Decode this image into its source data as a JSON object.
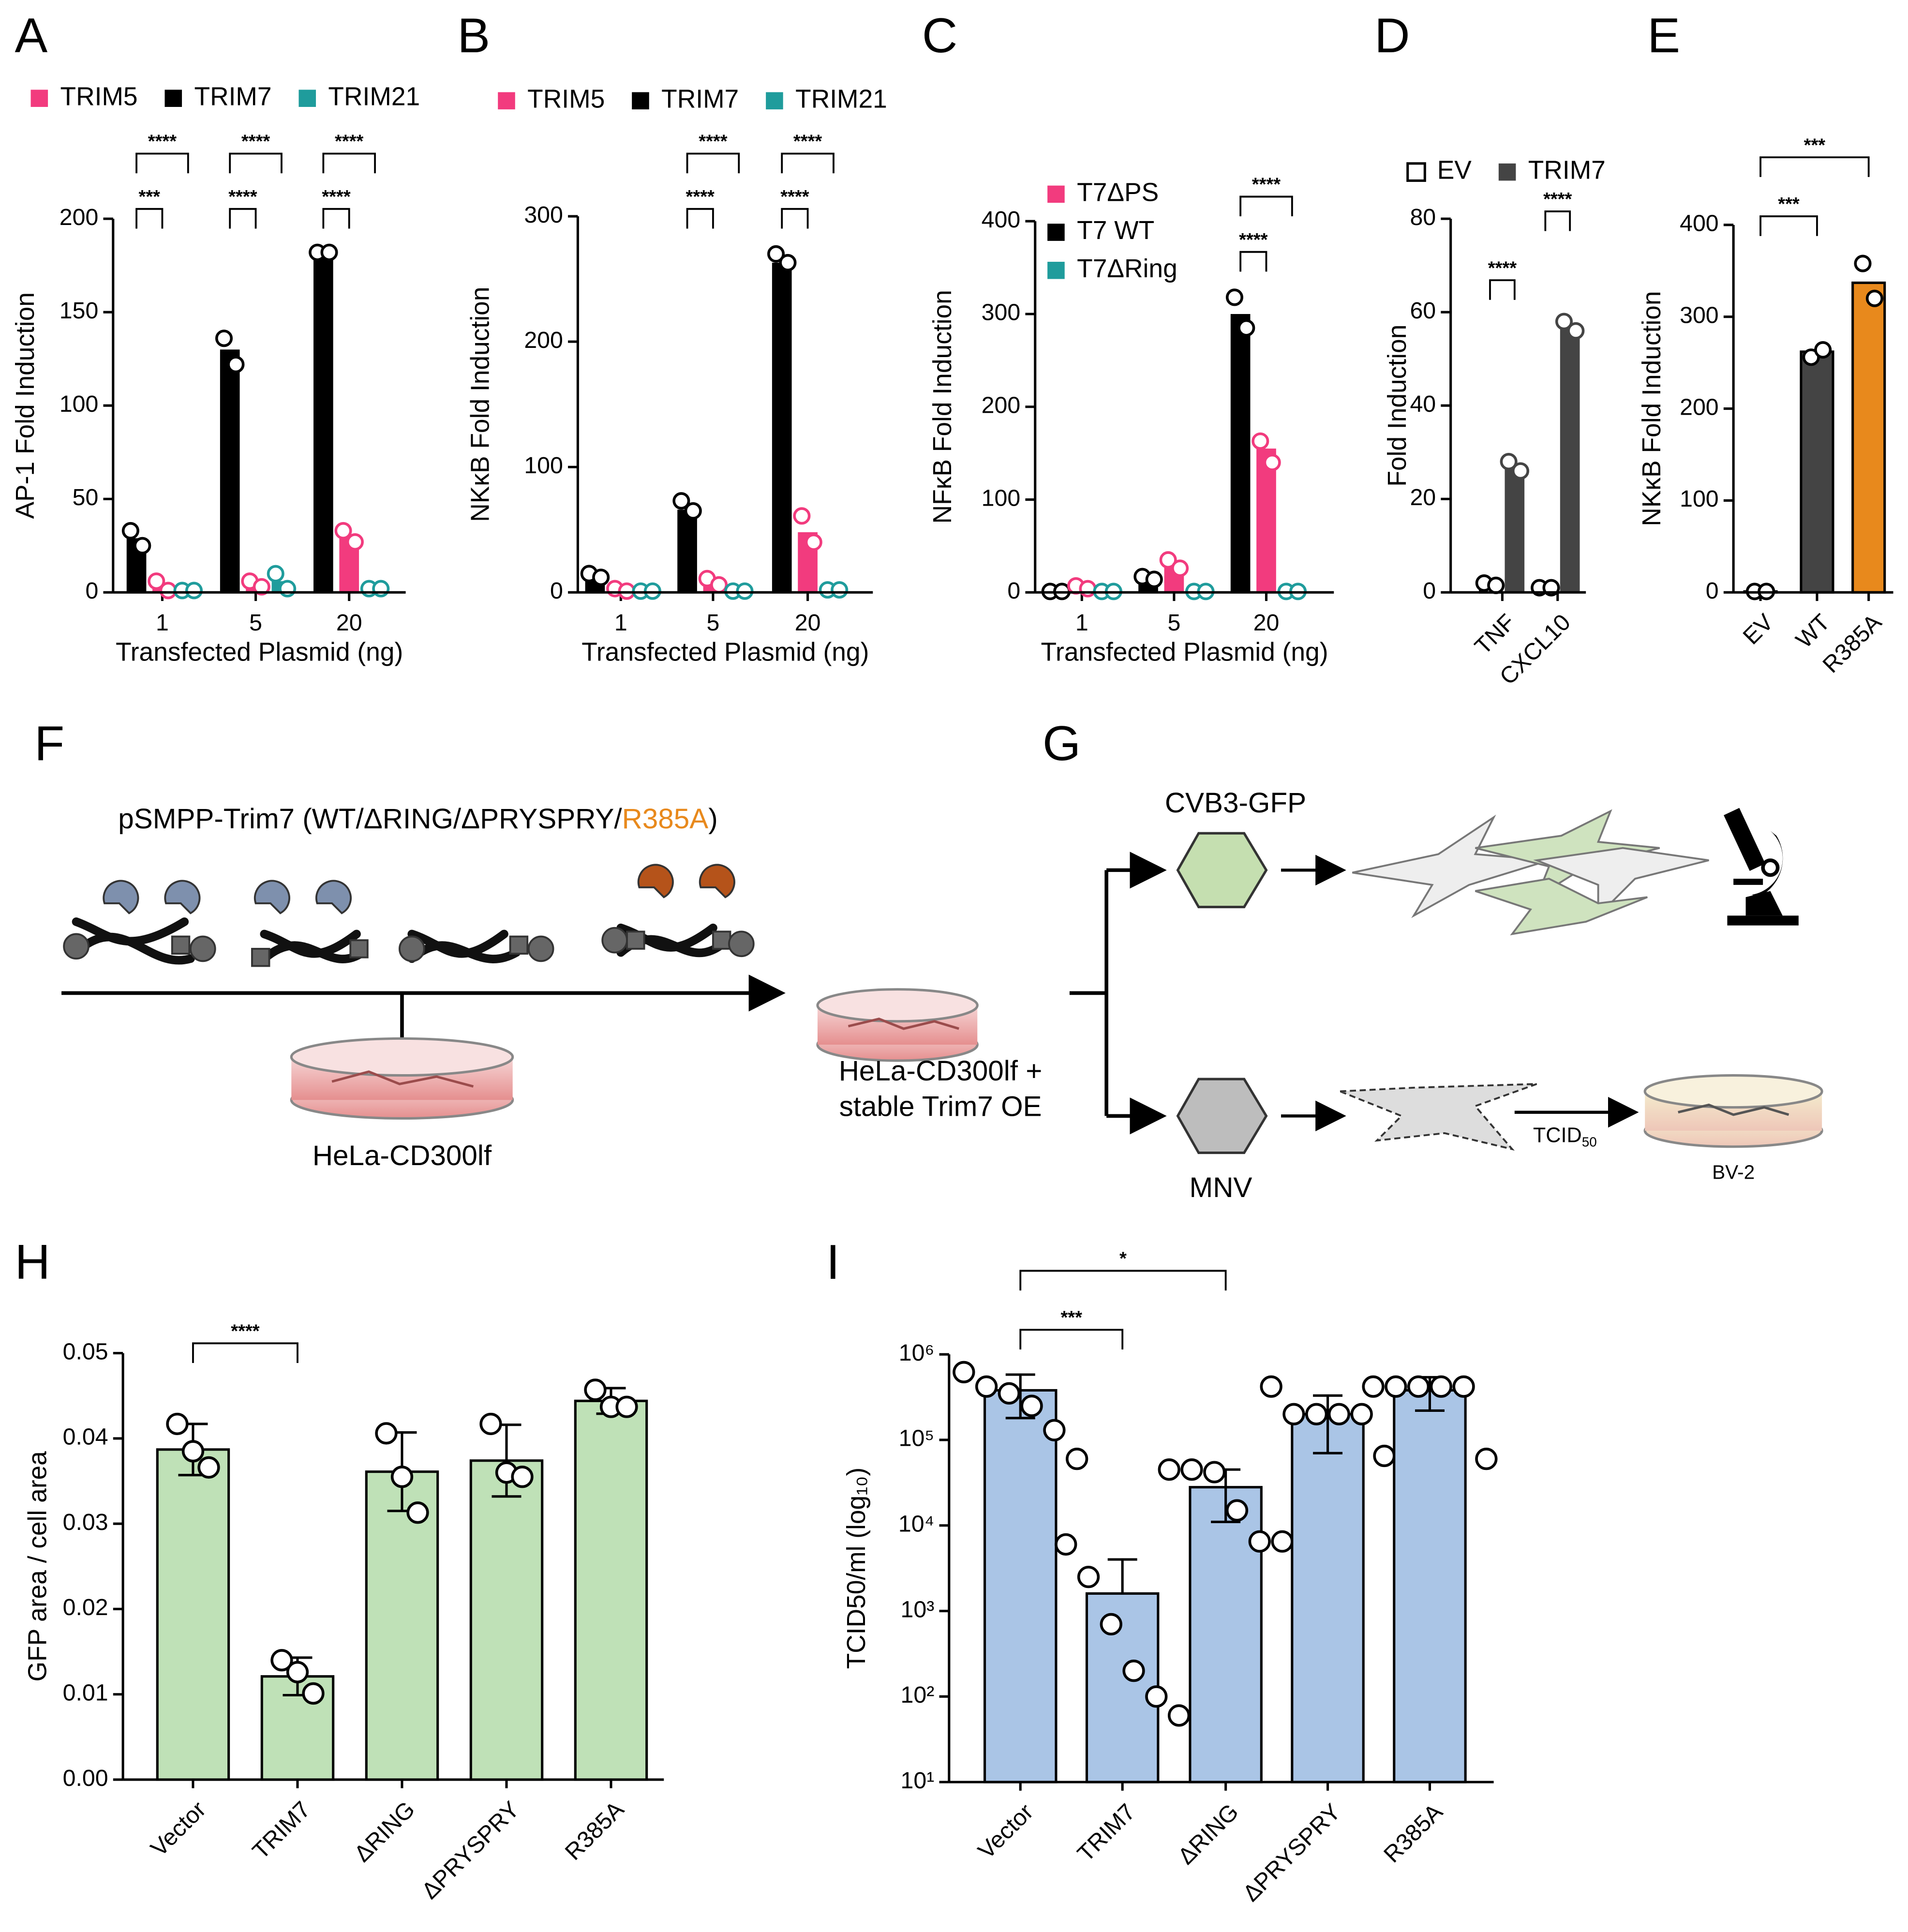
{
  "chart_data": [
    {
      "type": "bar",
      "panel": "A",
      "ylabel": "AP-1 Fold Induction",
      "xlabel": "Transfected Plasmid (ng)",
      "categories": [
        "1",
        "5",
        "20"
      ],
      "ylim": [
        0,
        200
      ],
      "yticks": [
        0,
        50,
        100,
        150,
        200
      ],
      "bar_order": [
        1,
        0,
        2
      ],
      "series": [
        {
          "name": "TRIM5",
          "color": "#f23b7e",
          "values": [
            3,
            4,
            29
          ],
          "points": [
            [
              6,
              1
            ],
            [
              6,
              3
            ],
            [
              33,
              27
            ]
          ]
        },
        {
          "name": "TRIM7",
          "color": "#000000",
          "values": [
            29,
            130,
            182
          ],
          "points": [
            [
              33,
              25
            ],
            [
              136,
              122
            ],
            [
              182,
              182
            ]
          ]
        },
        {
          "name": "TRIM21",
          "color": "#1f9c9c",
          "values": [
            1,
            6,
            2
          ],
          "points": [
            [
              1,
              1
            ],
            [
              10,
              2
            ],
            [
              2,
              2
            ]
          ]
        }
      ],
      "comparisons": [
        {
          "category": 0,
          "series": [
            1,
            0
          ],
          "label": "***"
        },
        {
          "category": 0,
          "series": [
            1,
            2
          ],
          "label": "****"
        },
        {
          "category": 1,
          "series": [
            1,
            0
          ],
          "label": "****"
        },
        {
          "category": 1,
          "series": [
            1,
            2
          ],
          "label": "****"
        },
        {
          "category": 2,
          "series": [
            1,
            0
          ],
          "label": "****"
        },
        {
          "category": 2,
          "series": [
            1,
            2
          ],
          "label": "****"
        }
      ]
    },
    {
      "type": "bar",
      "panel": "B",
      "ylabel": "NKκB Fold Induction",
      "xlabel": "Transfected Plasmid (ng)",
      "categories": [
        "1",
        "5",
        "20"
      ],
      "ylim": [
        0,
        300
      ],
      "yticks": [
        0,
        100,
        200,
        300
      ],
      "bar_order": [
        1,
        0,
        2
      ],
      "series": [
        {
          "name": "TRIM5",
          "color": "#f23b7e",
          "values": [
            2,
            8,
            48
          ],
          "points": [
            [
              3,
              1
            ],
            [
              11,
              6
            ],
            [
              61,
              40
            ]
          ]
        },
        {
          "name": "TRIM7",
          "color": "#000000",
          "values": [
            13,
            66,
            263
          ],
          "points": [
            [
              15,
              12
            ],
            [
              73,
              65
            ],
            [
              270,
              263
            ]
          ]
        },
        {
          "name": "TRIM21",
          "color": "#1f9c9c",
          "values": [
            1,
            1,
            2
          ],
          "points": [
            [
              1,
              1
            ],
            [
              1,
              1
            ],
            [
              2,
              2
            ]
          ]
        }
      ],
      "comparisons": [
        {
          "category": 1,
          "series": [
            1,
            0
          ],
          "label": "****"
        },
        {
          "category": 1,
          "series": [
            1,
            2
          ],
          "label": "****"
        },
        {
          "category": 2,
          "series": [
            1,
            0
          ],
          "label": "****"
        },
        {
          "category": 2,
          "series": [
            1,
            2
          ],
          "label": "****"
        }
      ]
    },
    {
      "type": "bar",
      "panel": "C",
      "ylabel": "NFκB Fold Induction",
      "xlabel": "Transfected Plasmid (ng)",
      "categories": [
        "1",
        "5",
        "20"
      ],
      "ylim": [
        0,
        400
      ],
      "yticks": [
        0,
        100,
        200,
        300,
        400
      ],
      "bar_order": [
        1,
        0,
        2
      ],
      "series": [
        {
          "name": "T7ΔPS",
          "color": "#f23b7e",
          "values": [
            5,
            30,
            155
          ],
          "points": [
            [
              7,
              4
            ],
            [
              35,
              26
            ],
            [
              163,
              140
            ]
          ]
        },
        {
          "name": "T7 WT",
          "color": "#000000",
          "values": [
            1,
            15,
            300
          ],
          "points": [
            [
              1,
              1
            ],
            [
              17,
              14
            ],
            [
              318,
              285
            ]
          ]
        },
        {
          "name": "T7ΔRing",
          "color": "#1f9c9c",
          "values": [
            1,
            1,
            1
          ],
          "points": [
            [
              1,
              1
            ],
            [
              1,
              1
            ],
            [
              1,
              1
            ]
          ]
        }
      ],
      "comparisons": [
        {
          "category": 2,
          "series": [
            1,
            0
          ],
          "label": "****"
        },
        {
          "category": 2,
          "series": [
            1,
            2
          ],
          "label": "****"
        }
      ]
    },
    {
      "type": "bar",
      "panel": "D",
      "ylabel": "Fold Induction",
      "categories": [
        "TNF",
        "CXCL10"
      ],
      "ylim": [
        0,
        80
      ],
      "yticks": [
        0,
        20,
        40,
        60,
        80
      ],
      "bar_order": [
        0,
        1
      ],
      "series": [
        {
          "name": "EV",
          "color": "#ffffff",
          "values": [
            2,
            1
          ],
          "points": [
            [
              2,
              1.5
            ],
            [
              1,
              1
            ]
          ]
        },
        {
          "name": "TRIM7",
          "color": "#444444",
          "values": [
            27,
            57
          ],
          "points": [
            [
              28,
              26
            ],
            [
              58,
              56
            ]
          ]
        }
      ],
      "comparisons": [
        {
          "category": 0,
          "series": [
            0,
            1
          ],
          "label": "****"
        },
        {
          "category": 1,
          "series": [
            0,
            1
          ],
          "label": "****"
        }
      ]
    },
    {
      "type": "bar",
      "panel": "E",
      "ylabel": "NKκB Fold Induction",
      "categories": [
        "EV",
        "WT",
        "R385A"
      ],
      "ylim": [
        0,
        400
      ],
      "yticks": [
        0,
        100,
        200,
        300,
        400
      ],
      "values": [
        1,
        262,
        337
      ],
      "colors": [
        "#ffffff",
        "#444444",
        "#e8891c"
      ],
      "points": [
        [
          1,
          1
        ],
        [
          256,
          264
        ],
        [
          358,
          320
        ]
      ],
      "comparisons": [
        {
          "categories": [
            0,
            1
          ],
          "label": "***"
        },
        {
          "categories": [
            0,
            2
          ],
          "label": "***"
        }
      ]
    },
    {
      "type": "bar",
      "panel": "H",
      "ylabel": "GFP area / cell area",
      "categories": [
        "Vector",
        "TRIM7",
        "ΔRING",
        "ΔPRYSPRY",
        "R385A"
      ],
      "ylim": [
        0,
        0.05
      ],
      "yticks": [
        {
          "value": 0,
          "label": "0.00"
        },
        0.01,
        0.02,
        0.03,
        0.04,
        0.05
      ],
      "color": "#bfe1b7",
      "values": [
        0.0387,
        0.0121,
        0.0361,
        0.0374,
        0.0444
      ],
      "errors": [
        0.003,
        0.0022,
        0.0046,
        0.0042,
        0.0015
      ],
      "points": [
        [
          0.0417,
          0.0385,
          0.0366
        ],
        [
          0.014,
          0.0126,
          0.0101
        ],
        [
          0.0406,
          0.0355,
          0.0313
        ],
        [
          0.0417,
          0.036,
          0.0355
        ],
        [
          0.0457,
          0.0437,
          0.0437
        ]
      ],
      "comparisons": [
        {
          "categories": [
            0,
            1
          ],
          "label": "****"
        }
      ]
    },
    {
      "type": "bar",
      "panel": "I",
      "ylabel": "TCID50/ml (log₁₀)",
      "log_y": true,
      "categories": [
        "Vector",
        "TRIM7",
        "ΔRING",
        "ΔPRYSPRY",
        "R385A"
      ],
      "ylim": [
        10,
        1000000
      ],
      "yticks": [
        {
          "value": 10,
          "label": "10¹"
        },
        {
          "value": 100,
          "label": "10²"
        },
        {
          "value": 1000,
          "label": "10³"
        },
        {
          "value": 10000,
          "label": "10⁴"
        },
        {
          "value": 100000,
          "label": "10⁵"
        },
        {
          "value": 1000000,
          "label": "10⁶"
        }
      ],
      "color": "#aac5e6",
      "values": [
        380000,
        1600,
        28000,
        200000,
        380000
      ],
      "errors": [
        200000,
        2400,
        17000,
        130000,
        160000
      ],
      "points": [
        [
          620000,
          420000,
          350000,
          250000,
          130000,
          60000
        ],
        [
          6000,
          2500,
          700,
          200,
          100,
          60
        ],
        [
          45000,
          45000,
          42000,
          15000,
          6500,
          6500
        ],
        [
          420000,
          200000,
          200000,
          200000,
          200000,
          65000
        ],
        [
          420000,
          420000,
          420000,
          420000,
          420000,
          60000
        ]
      ],
      "comparisons": [
        {
          "categories": [
            0,
            1
          ],
          "label": "***"
        },
        {
          "categories": [
            0,
            2
          ],
          "label": "*"
        }
      ]
    }
  ],
  "diagram": {
    "F": {
      "panel": "F",
      "construct": [
        "pSMPP-Trim7 (WT/ΔRING/ΔPRYSPRY/",
        "R385A",
        ")"
      ],
      "cell_line": "HeLa-CD300lf",
      "stable_line": [
        "HeLa-CD300lf +",
        "stable Trim7 OE"
      ]
    },
    "G": {
      "panel": "G",
      "virus1": "CVB3-GFP",
      "virus2": "MNV",
      "assay": "TCID",
      "assay_sub": "50",
      "readout_cells": "BV-2"
    }
  }
}
